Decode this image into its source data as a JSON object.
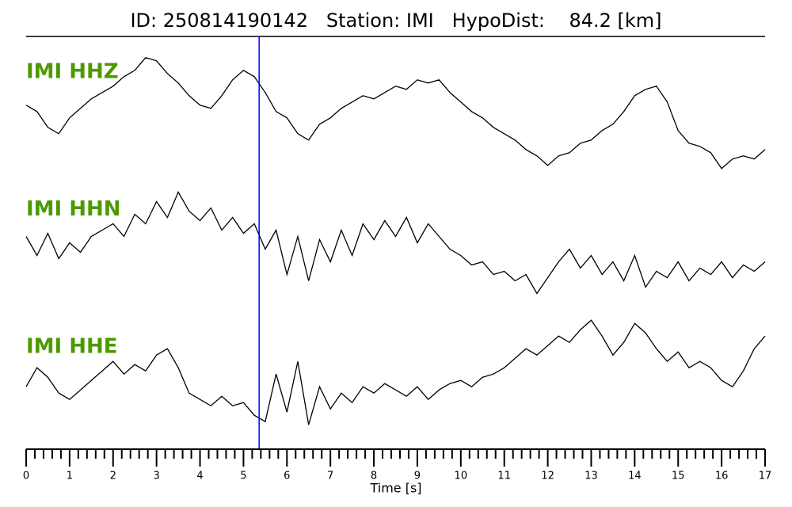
{
  "chart_data": {
    "type": "seismogram",
    "title": "ID: 250814190142   Station: IMI   HypoDist:    84.2 [km]",
    "xlabel": "Time [s]",
    "x": [
      0,
      0.25,
      0.5,
      0.75,
      1,
      1.25,
      1.5,
      1.75,
      2,
      2.25,
      2.5,
      2.75,
      3,
      3.25,
      3.5,
      3.75,
      4,
      4.25,
      4.5,
      4.75,
      5,
      5.25,
      5.5,
      5.75,
      6,
      6.25,
      6.5,
      6.75,
      7,
      7.25,
      7.5,
      7.75,
      8,
      8.25,
      8.5,
      8.75,
      9,
      9.25,
      9.5,
      9.75,
      10,
      10.25,
      10.5,
      10.75,
      11,
      11.25,
      11.5,
      11.75,
      12,
      12.25,
      12.5,
      12.75,
      13,
      13.25,
      13.5,
      13.75,
      14,
      14.25,
      14.5,
      14.75,
      15,
      15.25,
      15.5,
      15.75,
      16,
      16.25,
      16.5,
      16.75,
      17
    ],
    "xlim": [
      0,
      17
    ],
    "xticks": [
      0,
      1,
      2,
      3,
      4,
      5,
      6,
      7,
      8,
      9,
      10,
      11,
      12,
      13,
      14,
      15,
      16,
      17
    ],
    "ylim": [
      -1,
      1
    ],
    "label_color": "#4c9a00",
    "pick": {
      "x": 5.36,
      "color": "#0000ff"
    },
    "series": [
      {
        "name": "IMI HHZ",
        "color": "#000000",
        "values": [
          0,
          -0.1,
          -0.35,
          -0.45,
          -0.2,
          -0.05,
          0.1,
          0.2,
          0.3,
          0.45,
          0.55,
          0.75,
          0.7,
          0.5,
          0.35,
          0.15,
          0,
          -0.05,
          0.15,
          0.4,
          0.55,
          0.45,
          0.2,
          -0.1,
          -0.2,
          -0.45,
          -0.55,
          -0.3,
          -0.2,
          -0.05,
          0.05,
          0.15,
          0.1,
          0.2,
          0.3,
          0.25,
          0.4,
          0.35,
          0.4,
          0.2,
          0.05,
          -0.1,
          -0.2,
          -0.35,
          -0.45,
          -0.55,
          -0.7,
          -0.8,
          -0.95,
          -0.8,
          -0.75,
          -0.6,
          -0.55,
          -0.4,
          -0.3,
          -0.1,
          0.15,
          0.25,
          0.3,
          0.05,
          -0.4,
          -0.6,
          -0.65,
          -0.75,
          -1,
          -0.85,
          -0.8,
          -0.85,
          -0.7
        ]
      },
      {
        "name": "IMI HHN",
        "color": "#000000",
        "values": [
          0.1,
          -0.2,
          0.15,
          -0.25,
          0,
          -0.15,
          0.1,
          0.2,
          0.3,
          0.1,
          0.45,
          0.3,
          0.65,
          0.4,
          0.8,
          0.5,
          0.35,
          0.55,
          0.2,
          0.4,
          0.15,
          0.3,
          -0.1,
          0.2,
          -0.5,
          0.1,
          -0.6,
          0.05,
          -0.3,
          0.2,
          -0.2,
          0.3,
          0.05,
          0.35,
          0.1,
          0.4,
          0,
          0.3,
          0.1,
          -0.1,
          -0.2,
          -0.35,
          -0.3,
          -0.5,
          -0.45,
          -0.6,
          -0.5,
          -0.8,
          -0.55,
          -0.3,
          -0.1,
          -0.4,
          -0.2,
          -0.5,
          -0.3,
          -0.6,
          -0.2,
          -0.7,
          -0.45,
          -0.55,
          -0.3,
          -0.6,
          -0.4,
          -0.5,
          -0.3,
          -0.55,
          -0.35,
          -0.45,
          -0.3
        ]
      },
      {
        "name": "IMI HHE",
        "color": "#000000",
        "values": [
          -0.1,
          0.2,
          0.05,
          -0.2,
          -0.3,
          -0.15,
          0,
          0.15,
          0.3,
          0.1,
          0.25,
          0.15,
          0.4,
          0.5,
          0.2,
          -0.2,
          -0.3,
          -0.4,
          -0.25,
          -0.4,
          -0.35,
          -0.55,
          -0.65,
          0.1,
          -0.5,
          0.3,
          -0.7,
          -0.1,
          -0.45,
          -0.2,
          -0.35,
          -0.1,
          -0.2,
          -0.05,
          -0.15,
          -0.25,
          -0.1,
          -0.3,
          -0.15,
          -0.05,
          0,
          -0.1,
          0.05,
          0.1,
          0.2,
          0.35,
          0.5,
          0.4,
          0.55,
          0.7,
          0.6,
          0.8,
          0.95,
          0.7,
          0.4,
          0.6,
          0.9,
          0.75,
          0.5,
          0.3,
          0.45,
          0.2,
          0.3,
          0.2,
          0,
          -0.1,
          0.15,
          0.5,
          0.7
        ]
      }
    ]
  }
}
